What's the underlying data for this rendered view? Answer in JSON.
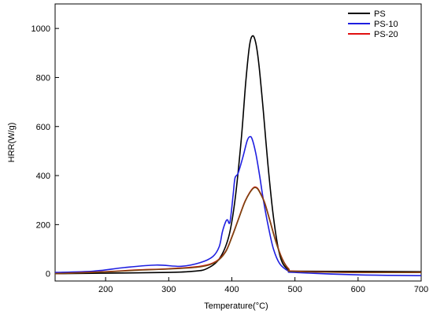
{
  "chart_data": {
    "type": "line",
    "title": "",
    "xlabel": "Temperature(°C)",
    "ylabel": "HRR(W/g)",
    "xlim": [
      120,
      700
    ],
    "ylim": [
      -30,
      1100
    ],
    "x_ticks": [
      200,
      300,
      400,
      500,
      600,
      700
    ],
    "y_ticks": [
      0,
      200,
      400,
      600,
      800,
      1000
    ],
    "x_tick_labels": [
      "200",
      "300",
      "400",
      "500",
      "600",
      "700"
    ],
    "y_tick_labels": [
      "0",
      "200",
      "400",
      "600",
      "800",
      "1000"
    ],
    "grid": false,
    "legend": "top-right",
    "series": [
      {
        "name": "PS",
        "color": "#000000",
        "points": [
          [
            120,
            0
          ],
          [
            200,
            2
          ],
          [
            300,
            5
          ],
          [
            340,
            10
          ],
          [
            360,
            20
          ],
          [
            380,
            60
          ],
          [
            395,
            150
          ],
          [
            405,
            300
          ],
          [
            415,
            550
          ],
          [
            422,
            780
          ],
          [
            428,
            930
          ],
          [
            433,
            970
          ],
          [
            438,
            940
          ],
          [
            443,
            850
          ],
          [
            450,
            660
          ],
          [
            457,
            450
          ],
          [
            465,
            250
          ],
          [
            473,
            110
          ],
          [
            480,
            45
          ],
          [
            490,
            15
          ],
          [
            500,
            10
          ],
          [
            600,
            9
          ],
          [
            700,
            8
          ]
        ]
      },
      {
        "name": "PS-10",
        "color": "#1f1fe0",
        "points": [
          [
            120,
            5
          ],
          [
            180,
            10
          ],
          [
            230,
            25
          ],
          [
            280,
            35
          ],
          [
            320,
            30
          ],
          [
            350,
            45
          ],
          [
            370,
            70
          ],
          [
            380,
            110
          ],
          [
            385,
            170
          ],
          [
            390,
            210
          ],
          [
            393,
            220
          ],
          [
            397,
            210
          ],
          [
            402,
            320
          ],
          [
            405,
            390
          ],
          [
            410,
            410
          ],
          [
            418,
            480
          ],
          [
            424,
            540
          ],
          [
            428,
            558
          ],
          [
            432,
            550
          ],
          [
            438,
            490
          ],
          [
            444,
            400
          ],
          [
            450,
            300
          ],
          [
            458,
            190
          ],
          [
            466,
            100
          ],
          [
            476,
            40
          ],
          [
            490,
            10
          ],
          [
            500,
            5
          ],
          [
            600,
            -5
          ],
          [
            700,
            -8
          ]
        ]
      },
      {
        "name": "PS-20",
        "color": "#e01010",
        "points": [
          [
            120,
            0
          ],
          [
            200,
            8
          ],
          [
            250,
            15
          ],
          [
            300,
            20
          ],
          [
            350,
            30
          ],
          [
            375,
            50
          ],
          [
            390,
            90
          ],
          [
            400,
            150
          ],
          [
            410,
            220
          ],
          [
            420,
            290
          ],
          [
            428,
            330
          ],
          [
            435,
            352
          ],
          [
            440,
            350
          ],
          [
            445,
            330
          ],
          [
            452,
            290
          ],
          [
            460,
            220
          ],
          [
            470,
            130
          ],
          [
            480,
            60
          ],
          [
            490,
            20
          ],
          [
            500,
            10
          ],
          [
            600,
            5
          ],
          [
            700,
            5
          ]
        ]
      },
      {
        "name": "",
        "color": "#7a4410",
        "points": [
          [
            120,
            0
          ],
          [
            200,
            7
          ],
          [
            250,
            14
          ],
          [
            300,
            19
          ],
          [
            350,
            28
          ],
          [
            375,
            48
          ],
          [
            390,
            88
          ],
          [
            400,
            148
          ],
          [
            410,
            218
          ],
          [
            420,
            288
          ],
          [
            428,
            328
          ],
          [
            435,
            350
          ],
          [
            440,
            348
          ],
          [
            445,
            328
          ],
          [
            452,
            288
          ],
          [
            460,
            218
          ],
          [
            470,
            128
          ],
          [
            480,
            58
          ],
          [
            490,
            18
          ],
          [
            500,
            9
          ],
          [
            600,
            5
          ],
          [
            700,
            5
          ]
        ]
      }
    ]
  }
}
